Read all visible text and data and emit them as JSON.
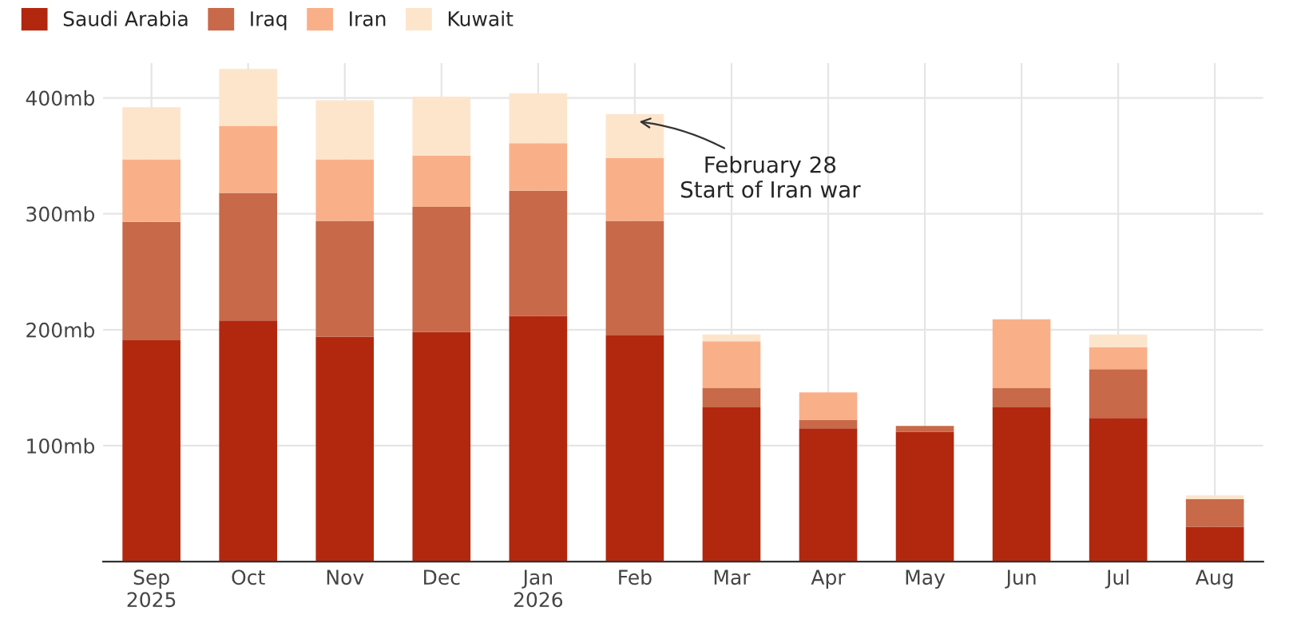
{
  "chart_data": {
    "type": "bar",
    "stacked": true,
    "categories": [
      "Sep\n2025",
      "Oct",
      "Nov",
      "Dec",
      "Jan\n2026",
      "Feb",
      "Mar",
      "Apr",
      "May",
      "Jun",
      "Jul",
      "Aug"
    ],
    "series": [
      {
        "name": "Saudi Arabia",
        "color": "#b2280f",
        "values": [
          191,
          208,
          194,
          198,
          212,
          195,
          133,
          115,
          112,
          133,
          124,
          30
        ]
      },
      {
        "name": "Iraq",
        "color": "#c8694a",
        "values": [
          102,
          110,
          100,
          108,
          108,
          99,
          17,
          7,
          5,
          17,
          42,
          24
        ]
      },
      {
        "name": "Iran",
        "color": "#f9b088",
        "values": [
          54,
          58,
          53,
          44,
          41,
          54,
          40,
          24,
          0,
          59,
          19,
          0
        ]
      },
      {
        "name": "Kuwait",
        "color": "#fde5cc",
        "values": [
          45,
          49,
          51,
          51,
          43,
          38,
          6,
          0,
          0,
          0,
          11,
          3
        ]
      }
    ],
    "ylim": [
      0,
      430
    ],
    "yticks": [
      {
        "value": 100,
        "label": "100mb"
      },
      {
        "value": 200,
        "label": "200mb"
      },
      {
        "value": 300,
        "label": "300mb"
      },
      {
        "value": 400,
        "label": "400mb"
      }
    ],
    "grid": true,
    "legend": "top left",
    "annotations": [
      {
        "text": "February 28\nStart of Iran war",
        "x": "Feb",
        "y": 380
      }
    ]
  }
}
